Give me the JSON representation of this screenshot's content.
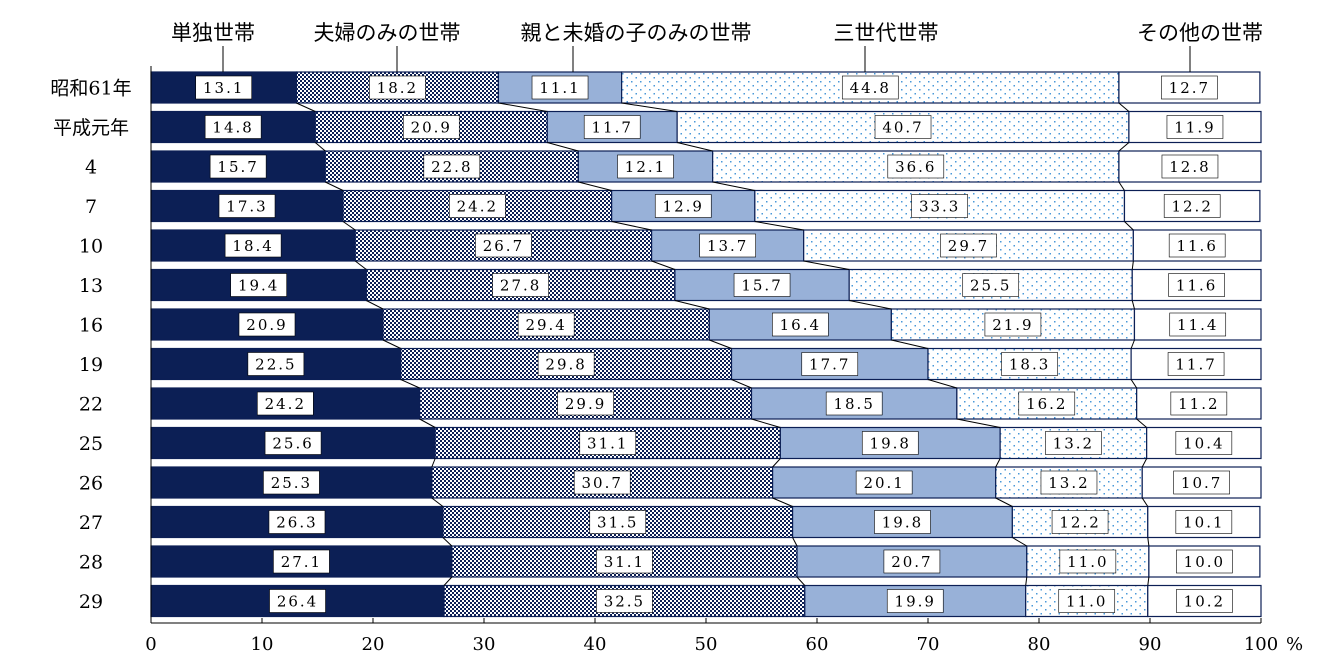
{
  "chart_data": {
    "type": "bar",
    "orientation": "horizontal",
    "stacked": true,
    "categories": [
      "昭和61年",
      "平成元年",
      "4",
      "7",
      "10",
      "13",
      "16",
      "19",
      "22",
      "25",
      "26",
      "27",
      "28",
      "29"
    ],
    "series": [
      {
        "name": "単独世帯",
        "values": [
          13.1,
          14.8,
          15.7,
          17.3,
          18.4,
          19.4,
          20.9,
          22.5,
          24.2,
          25.6,
          25.3,
          26.3,
          27.1,
          26.4
        ],
        "color": "#0c1f55",
        "pattern": "solid"
      },
      {
        "name": "夫婦のみの世帯",
        "values": [
          18.2,
          20.9,
          22.8,
          24.2,
          26.7,
          27.8,
          29.4,
          29.8,
          29.9,
          31.1,
          30.7,
          31.5,
          31.1,
          32.5
        ],
        "color": "#0c1f55",
        "pattern": "checker"
      },
      {
        "name": "親と未婚の子のみの世帯",
        "values": [
          11.1,
          11.7,
          12.1,
          12.9,
          13.7,
          15.7,
          16.4,
          17.7,
          18.5,
          19.8,
          20.1,
          19.8,
          20.7,
          19.9
        ],
        "color": "#98b1d8",
        "pattern": "solid"
      },
      {
        "name": "三世代世帯",
        "values": [
          44.8,
          40.7,
          36.6,
          33.3,
          29.7,
          25.5,
          21.9,
          18.3,
          16.2,
          13.2,
          13.2,
          12.2,
          11.0,
          11.0
        ],
        "color": "#4a98d8",
        "pattern": "dots"
      },
      {
        "name": "その他の世帯",
        "values": [
          12.7,
          11.9,
          12.8,
          12.2,
          11.6,
          11.6,
          11.4,
          11.7,
          11.2,
          10.4,
          10.7,
          10.1,
          10.0,
          10.2
        ],
        "color": "#ffffff",
        "pattern": "solid"
      }
    ],
    "value_labels": [
      [
        "13.1",
        "14.8",
        "15.7",
        "17.3",
        "18.4",
        "19.4",
        "20.9",
        "22.5",
        "24.2",
        "25.6",
        "25.3",
        "26.3",
        "27.1",
        "26.4"
      ],
      [
        "18.2",
        "20.9",
        "22.8",
        "24.2",
        "26.7",
        "27.8",
        "29.4",
        "29.8",
        "29.9",
        "31.1",
        "30.7",
        "31.5",
        "31.1",
        "32.5"
      ],
      [
        "11.1",
        "11.7",
        "12.1",
        "12.9",
        "13.7",
        "15.7",
        "16.4",
        "17.7",
        "18.5",
        "19.8",
        "20.1",
        "19.8",
        "20.7",
        "19.9"
      ],
      [
        "44.8",
        "40.7",
        "36.6",
        "33.3",
        "29.7",
        "25.5",
        "21.9",
        "18.3",
        "16.2",
        "13.2",
        "13.2",
        "12.2",
        "11.0",
        "11.0"
      ],
      [
        "12.7",
        "11.9",
        "12.8",
        "12.2",
        "11.6",
        "11.6",
        "11.4",
        "11.7",
        "11.2",
        "10.4",
        "10.7",
        "10.1",
        "10.0",
        "10.2"
      ]
    ],
    "xlim": [
      0,
      100
    ],
    "xticks": [
      0,
      10,
      20,
      30,
      40,
      50,
      60,
      70,
      80,
      90,
      100
    ],
    "xtick_labels": [
      "0",
      "10",
      "20",
      "30",
      "40",
      "50",
      "60",
      "70",
      "80",
      "90",
      "100"
    ],
    "xunit": "%",
    "grid": false,
    "legend": "top",
    "connector_lines": true
  }
}
